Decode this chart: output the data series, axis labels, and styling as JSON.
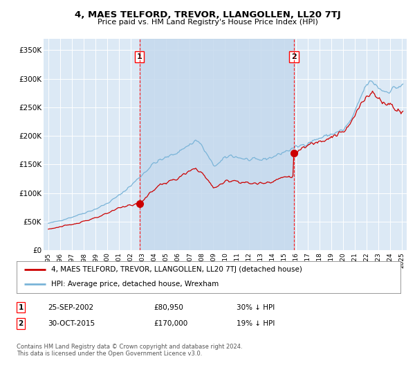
{
  "title": "4, MAES TELFORD, TREVOR, LLANGOLLEN, LL20 7TJ",
  "subtitle": "Price paid vs. HM Land Registry's House Price Index (HPI)",
  "hpi_color": "#7ab4d8",
  "price_color": "#cc0000",
  "bg_color": "#dce9f5",
  "shade_color": "#c5d9ed",
  "grid_color": "#ffffff",
  "ylim": [
    0,
    370000
  ],
  "yticks": [
    0,
    50000,
    100000,
    150000,
    200000,
    250000,
    300000,
    350000
  ],
  "ytick_labels": [
    "£0",
    "£50K",
    "£100K",
    "£150K",
    "£200K",
    "£250K",
    "£300K",
    "£350K"
  ],
  "sale1_x": 2002.73,
  "sale1_price": 80950,
  "sale2_x": 2015.83,
  "sale2_price": 170000,
  "legend_line1": "4, MAES TELFORD, TREVOR, LLANGOLLEN, LL20 7TJ (detached house)",
  "legend_line2": "HPI: Average price, detached house, Wrexham",
  "note1_date": "25-SEP-2002",
  "note1_price": "£80,950",
  "note1_hpi": "30% ↓ HPI",
  "note2_date": "30-OCT-2015",
  "note2_price": "£170,000",
  "note2_hpi": "19% ↓ HPI",
  "footer": "Contains HM Land Registry data © Crown copyright and database right 2024.\nThis data is licensed under the Open Government Licence v3.0."
}
